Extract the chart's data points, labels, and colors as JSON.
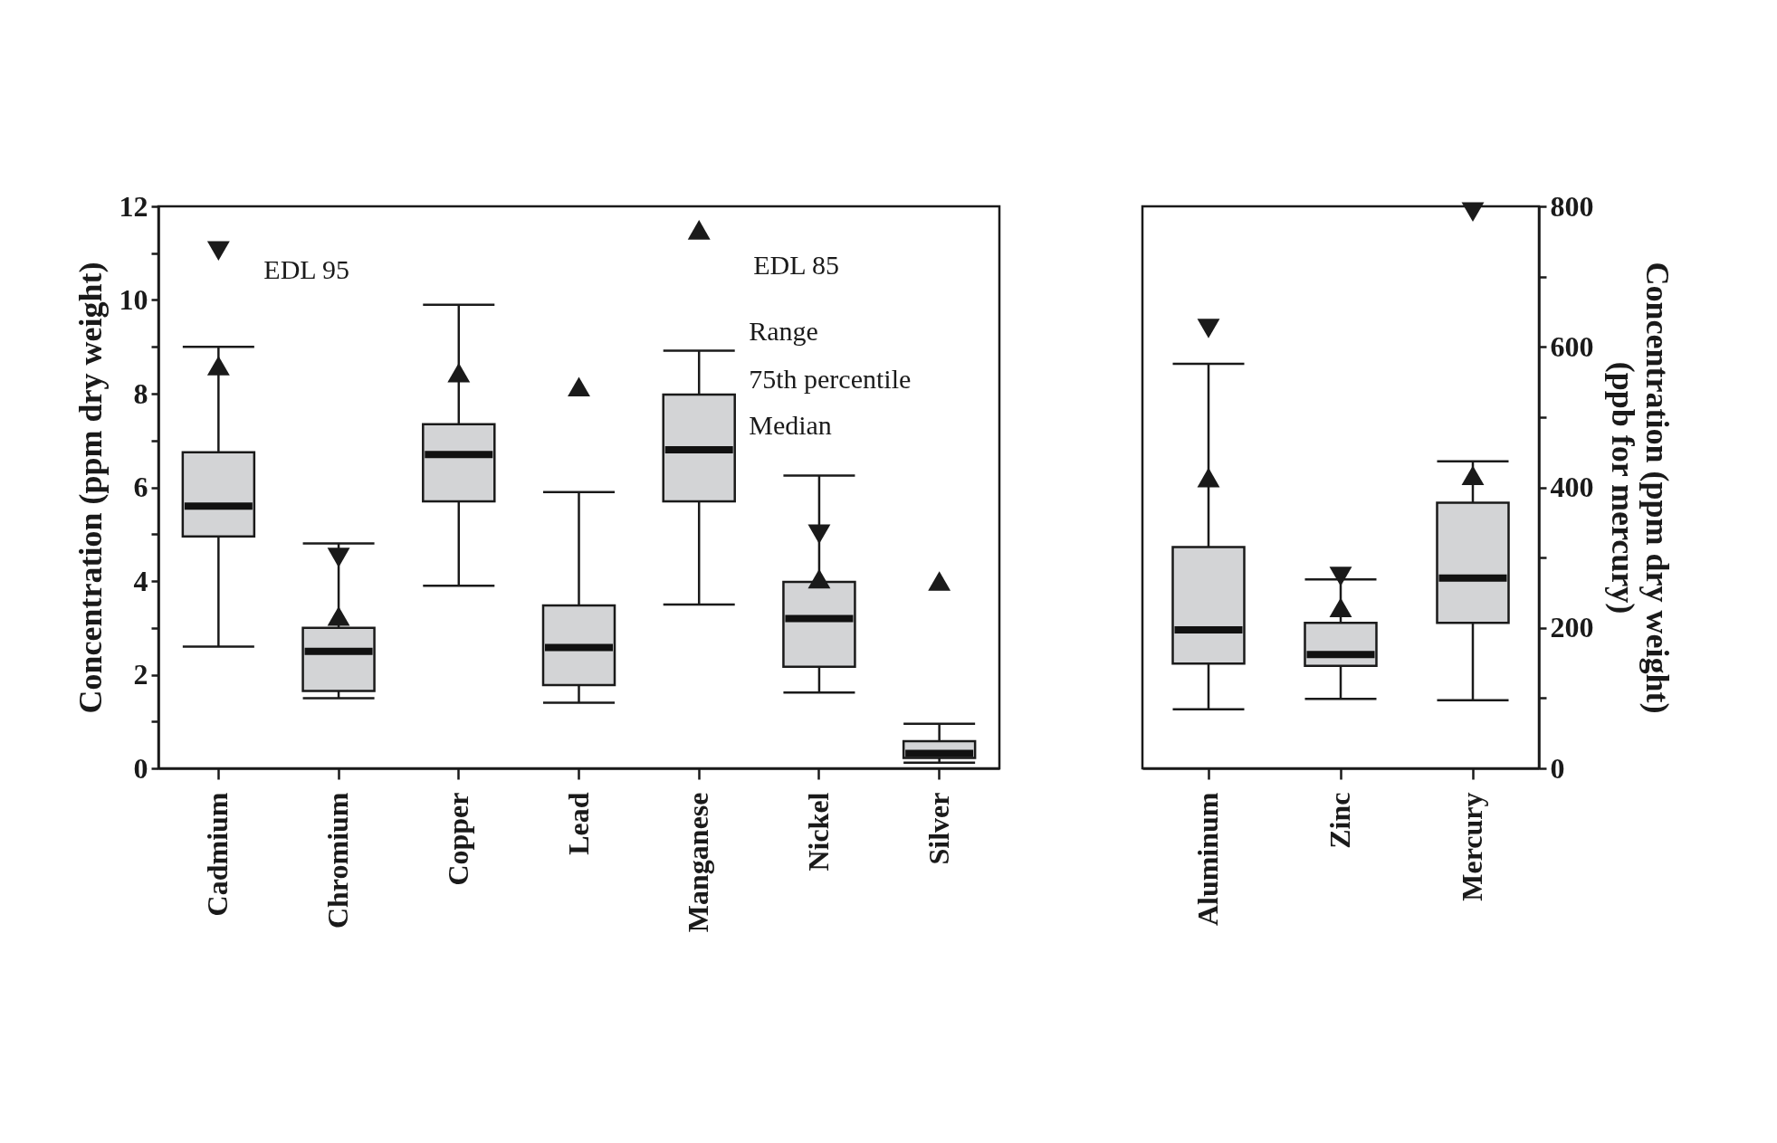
{
  "chart_data": [
    {
      "type": "box",
      "categories": [
        "Cadmium",
        "Chromium",
        "Copper",
        "Lead",
        "Manganese",
        "Nickel",
        "Silver"
      ],
      "ylabel": "Concentration (ppm dry weight)",
      "ylim": [
        0,
        12
      ],
      "yticks": [
        0,
        {
          "value": 1,
          "label": null
        },
        2,
        {
          "value": 3,
          "label": null
        },
        4,
        {
          "value": 5,
          "label": null
        },
        6,
        {
          "value": 7,
          "label": null
        },
        8,
        {
          "value": 9,
          "label": null
        },
        10,
        {
          "value": 11,
          "label": null
        },
        12
      ],
      "grid": false,
      "series": [
        {
          "type": "box",
          "color": "#d3d4d6",
          "boxes": [
            {
              "low": 2.6,
              "q1": 4.95,
              "median": 5.6,
              "q3": 6.75,
              "high": 9.0
            },
            {
              "low": 1.5,
              "q1": 1.65,
              "median": 2.5,
              "q3": 3.0,
              "high": 4.8
            },
            {
              "low": 3.9,
              "q1": 5.7,
              "median": 6.7,
              "q3": 7.35,
              "high": 9.9
            },
            {
              "low": 1.4,
              "q1": 1.78,
              "median": 2.58,
              "q3": 3.48,
              "high": 5.9
            },
            {
              "low": 3.5,
              "q1": 5.7,
              "median": 6.8,
              "q3": 7.98,
              "high": 8.92
            },
            {
              "low": 1.62,
              "q1": 2.17,
              "median": 3.2,
              "q3": 3.98,
              "high": 6.25
            },
            {
              "low": 0.12,
              "q1": 0.22,
              "median": 0.32,
              "q3": 0.58,
              "high": 0.95
            }
          ]
        },
        {
          "type": "scatter",
          "marker": "triangle-down",
          "color": "#1a1a1a",
          "x": [
            "Cadmium",
            "Chromium",
            "Copper",
            "Lead",
            "Manganese",
            "Nickel",
            "Silver"
          ],
          "values": [
            11.05,
            4.5,
            null,
            null,
            null,
            5.0,
            null
          ]
        },
        {
          "type": "scatter",
          "marker": "triangle",
          "color": "#1a1a1a",
          "x": [
            "Cadmium",
            "Chromium",
            "Copper",
            "Lead",
            "Manganese",
            "Nickel",
            "Silver"
          ],
          "values": [
            8.6,
            3.25,
            8.45,
            8.15,
            11.5,
            4.05,
            4.0
          ]
        }
      ],
      "annotations": [
        {
          "text": "EDL 95",
          "x": "Cadmium",
          "y": 11.05
        },
        {
          "text": "EDL 85",
          "x": "Manganese",
          "y": 11.5
        },
        {
          "text": "Range",
          "x": "Manganese",
          "y": 8.92
        },
        {
          "text": "75th percentile",
          "x": "Manganese",
          "y": 7.98
        },
        {
          "text": "Median",
          "x": "Manganese",
          "y": 6.8
        }
      ]
    },
    {
      "type": "box",
      "categories": [
        "Aluminum",
        "Zinc",
        "Mercury"
      ],
      "y2label": "Concentration (ppm dry weight)\n(ppb for mercury)",
      "y2lim": [
        0,
        800
      ],
      "y2ticks": [
        0,
        {
          "value": 100,
          "label": null
        },
        200,
        {
          "value": 300,
          "label": null
        },
        400,
        {
          "value": 500,
          "label": null
        },
        600,
        {
          "value": 700,
          "label": null
        },
        800
      ],
      "grid": false,
      "series": [
        {
          "type": "box",
          "axis": "y2",
          "color": "#d3d4d6",
          "boxes": [
            {
              "low": 84,
              "q1": 149,
              "median": 197,
              "q3": 315,
              "high": 576
            },
            {
              "low": 99,
              "q1": 146,
              "median": 162,
              "q3": 207,
              "high": 269
            },
            {
              "low": 97,
              "q1": 207,
              "median": 271,
              "q3": 378,
              "high": 437
            }
          ]
        },
        {
          "type": "scatter",
          "axis": "y2",
          "marker": "triangle-down",
          "color": "#1a1a1a",
          "x": [
            "Aluminum",
            "Zinc",
            "Mercury"
          ],
          "values": [
            626,
            273,
            792
          ]
        },
        {
          "type": "scatter",
          "axis": "y2",
          "marker": "triangle",
          "color": "#1a1a1a",
          "x": [
            "Aluminum",
            "Zinc",
            "Mercury"
          ],
          "values": [
            414,
            229,
            417
          ]
        }
      ]
    }
  ]
}
